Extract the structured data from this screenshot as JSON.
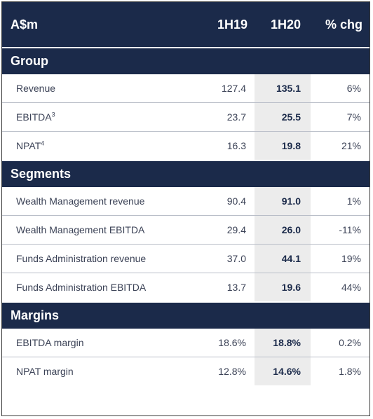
{
  "header": {
    "label": "A$m",
    "col_1h19": "1H19",
    "col_1h20": "1H20",
    "col_chg": "% chg"
  },
  "sections": [
    {
      "title": "Group",
      "rows": [
        {
          "label": "Revenue",
          "sup": "",
          "v1h19": "127.4",
          "v1h20": "135.1",
          "chg": "6%"
        },
        {
          "label": "EBITDA",
          "sup": "3",
          "v1h19": "23.7",
          "v1h20": "25.5",
          "chg": "7%"
        },
        {
          "label": "NPAT",
          "sup": "4",
          "v1h19": "16.3",
          "v1h20": "19.8",
          "chg": "21%"
        }
      ]
    },
    {
      "title": "Segments",
      "rows": [
        {
          "label": "Wealth Management revenue",
          "sup": "",
          "v1h19": "90.4",
          "v1h20": "91.0",
          "chg": "1%"
        },
        {
          "label": "Wealth Management EBITDA",
          "sup": "",
          "v1h19": "29.4",
          "v1h20": "26.0",
          "chg": "-11%"
        },
        {
          "label": "Funds Administration revenue",
          "sup": "",
          "v1h19": "37.0",
          "v1h20": "44.1",
          "chg": "19%"
        },
        {
          "label": "Funds Administration EBITDA",
          "sup": "",
          "v1h19": "13.7",
          "v1h20": "19.6",
          "chg": "44%"
        }
      ]
    },
    {
      "title": "Margins",
      "rows": [
        {
          "label": "EBITDA margin",
          "sup": "",
          "v1h19": "18.6%",
          "v1h20": "18.8%",
          "chg": "0.2%"
        },
        {
          "label": "NPAT margin",
          "sup": "",
          "v1h19": "12.8%",
          "v1h20": "14.6%",
          "chg": "1.8%"
        }
      ]
    }
  ]
}
